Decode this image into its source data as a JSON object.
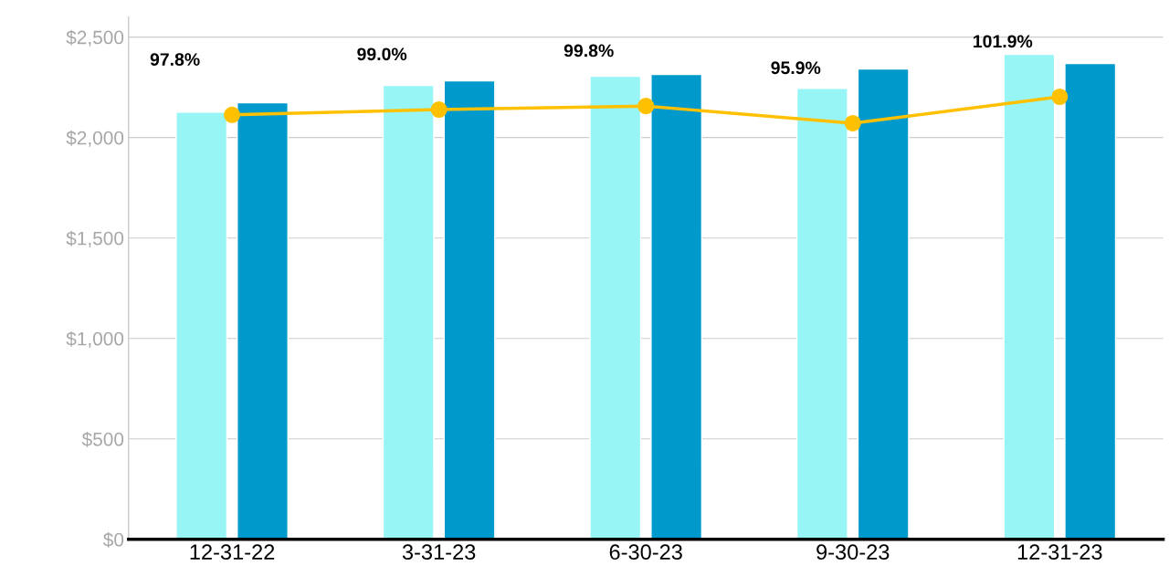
{
  "chart_data": {
    "type": "bar",
    "categories": [
      "12-31-22",
      "3-31-23",
      "6-30-23",
      "9-30-23",
      "12-31-23"
    ],
    "series": [
      {
        "color": "#98f5f5",
        "values": [
          2127,
          2259,
          2305,
          2245,
          2414
        ]
      },
      {
        "color": "#0099cc",
        "values": [
          2173,
          2282,
          2314,
          2341,
          2368
        ]
      },
      {
        "type": "line",
        "axis": "y2",
        "color": "#ffc000",
        "marker": "circle",
        "values": [
          97.8,
          99.0,
          99.8,
          95.9,
          101.9
        ],
        "value_labels": [
          "97.8%",
          "99.0%",
          "99.8%",
          "95.9%",
          "101.9%"
        ]
      }
    ],
    "ylim": [
      0,
      2600
    ],
    "yticks": [
      {
        "value": 0,
        "label": "$0"
      },
      {
        "value": 500,
        "label": "$500"
      },
      {
        "value": 1000,
        "label": "$1,000"
      },
      {
        "value": 1500,
        "label": "$1,500"
      },
      {
        "value": 2000,
        "label": "$2,000"
      },
      {
        "value": 2500,
        "label": "$2,500"
      }
    ],
    "y2lim": [
      1.5,
      120
    ],
    "tick_labels": "xy",
    "grid": "y",
    "legend": false
  }
}
